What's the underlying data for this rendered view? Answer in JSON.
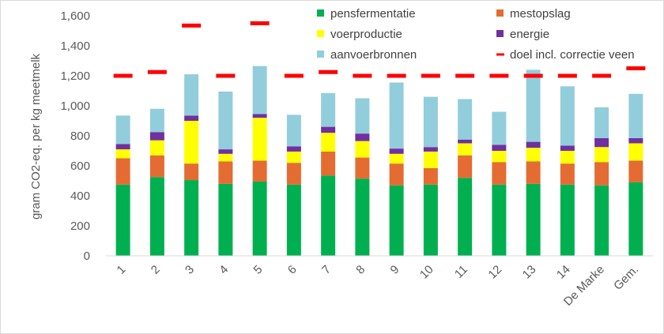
{
  "chart_data": {
    "type": "bar",
    "stacked": true,
    "categories": [
      "1",
      "2",
      "3",
      "4",
      "5",
      "6",
      "7",
      "8",
      "9",
      "10",
      "11",
      "12",
      "13",
      "14",
      "De Marke",
      "Gem."
    ],
    "ylabel": "gram CO2-eq. per kg meetmelk",
    "ylim": [
      0,
      1600
    ],
    "yticks": [
      0,
      200,
      400,
      600,
      800,
      1000,
      1200,
      1400,
      1600
    ],
    "ytick_labels": [
      "0",
      "200",
      "400",
      "600",
      "800",
      "1,000",
      "1,200",
      "1,400",
      "1,600"
    ],
    "grid": false,
    "legend_position": "top-right",
    "series": [
      {
        "name": "pensfermentatie",
        "color": "#00b050",
        "values": [
          475,
          525,
          505,
          480,
          495,
          475,
          535,
          515,
          470,
          475,
          520,
          475,
          480,
          475,
          470,
          490
        ]
      },
      {
        "name": "mestopslag",
        "color": "#e46c32",
        "values": [
          175,
          145,
          110,
          150,
          140,
          145,
          160,
          140,
          145,
          110,
          150,
          150,
          150,
          140,
          155,
          145
        ]
      },
      {
        "name": "voerproductie",
        "color": "#ffff00",
        "values": [
          60,
          100,
          285,
          50,
          285,
          75,
          125,
          110,
          65,
          110,
          80,
          75,
          90,
          85,
          100,
          115
        ]
      },
      {
        "name": "energie",
        "color": "#7030a0",
        "values": [
          35,
          55,
          35,
          30,
          25,
          35,
          40,
          50,
          35,
          30,
          25,
          40,
          40,
          35,
          60,
          35
        ]
      },
      {
        "name": "aanvoerbronnen",
        "color": "#92cddc",
        "values": [
          190,
          155,
          275,
          385,
          320,
          210,
          225,
          235,
          440,
          335,
          270,
          220,
          480,
          395,
          205,
          295
        ]
      }
    ],
    "target": {
      "name": "doel incl. correctie veen",
      "color": "#ff0000",
      "values": [
        1200,
        1225,
        1535,
        1200,
        1550,
        1200,
        1225,
        1200,
        1200,
        1200,
        1200,
        1200,
        1200,
        1200,
        1200,
        1250
      ]
    }
  }
}
